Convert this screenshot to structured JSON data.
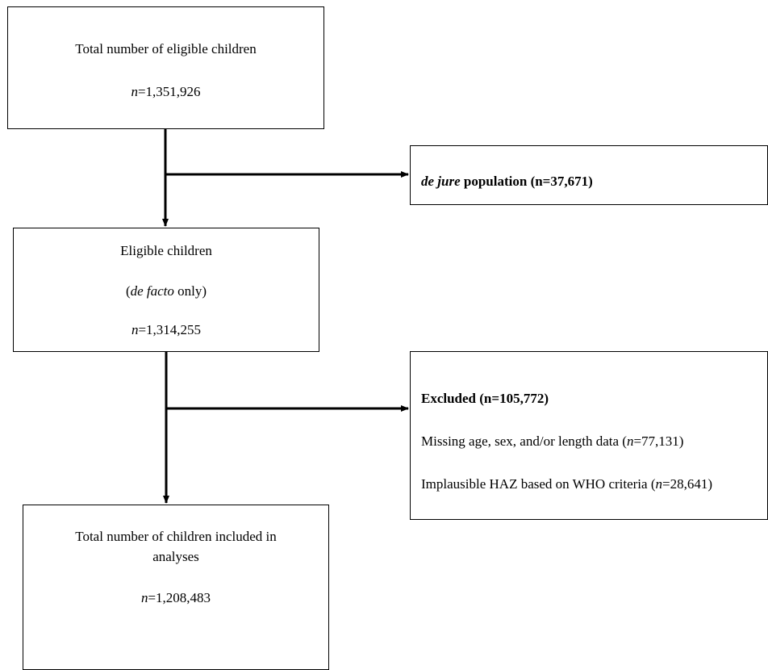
{
  "boxes": {
    "total_eligible": {
      "title": "Total number of eligible children",
      "n_italic": "n",
      "n_value": "=1,351,926"
    },
    "de_jure": {
      "term_italic": "de jure",
      "rest": " population (n=37,671)"
    },
    "de_facto": {
      "title": "Eligible children",
      "paren_open": "(",
      "term_italic": "de facto",
      "rest": " only)",
      "n_italic": "n",
      "n_value": "=1,314,255"
    },
    "excluded": {
      "heading": "Excluded (n=105,772)",
      "item1_text": "Missing age, sex, and/or length data (",
      "item1_n_italic": "n",
      "item1_value": "=77,131)",
      "item2_text": "Implausible HAZ based on WHO criteria (",
      "item2_n_italic": "n",
      "item2_value": "=28,641)"
    },
    "included": {
      "title_line1": "Total number of children included in",
      "title_line2": "analyses",
      "n_italic": "n",
      "n_value": "=1,208,483"
    }
  }
}
